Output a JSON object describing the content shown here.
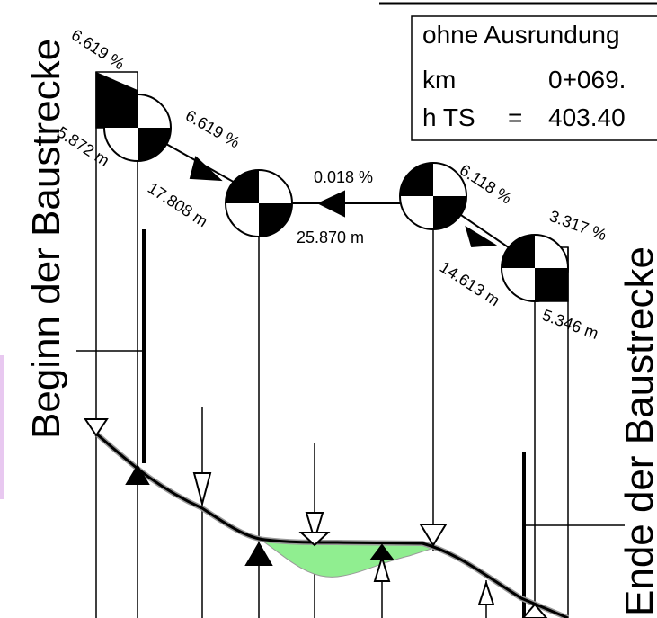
{
  "labels": {
    "start": "Beginn der Baustrecke",
    "end": "Ende der Baustrecke"
  },
  "info_box": {
    "title": "ohne Ausrundung",
    "km_label": "km",
    "km_value": "0+069.",
    "hts_label": "h TS",
    "hts_eq": "=",
    "hts_value": "403.40"
  },
  "grades": [
    "6.619 %",
    "6.619 %",
    "0.018 %",
    "6.118 %",
    "3.317 %"
  ],
  "lengths": [
    "5.872 m",
    "17.808 m",
    "25.870 m",
    "14.613 m",
    "5.346 m"
  ],
  "colors": {
    "line": "#000000",
    "fill_area": "#90ee90",
    "terrain_gray": "#999999",
    "left_accent": "#e8c8f0"
  }
}
